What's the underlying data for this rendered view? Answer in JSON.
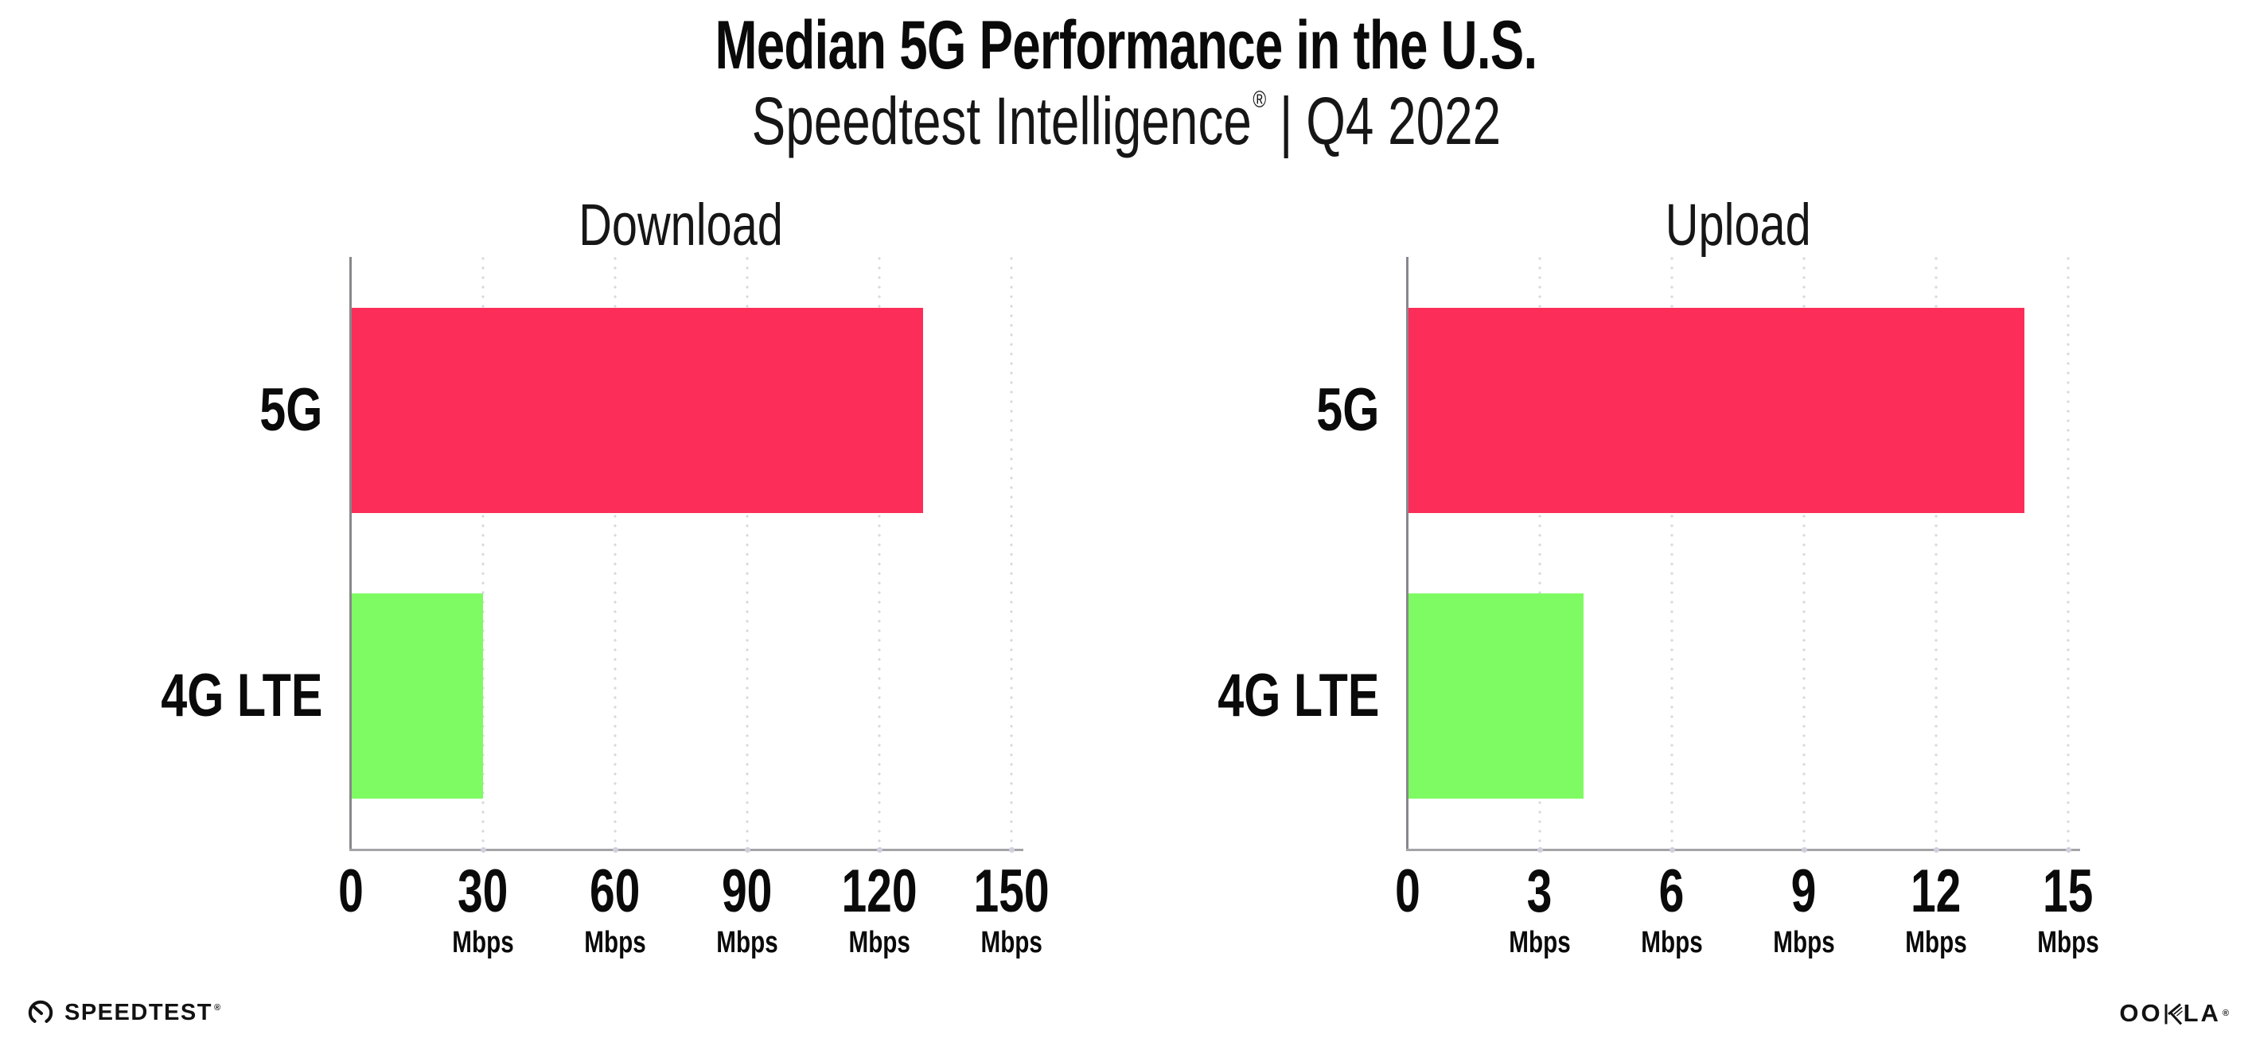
{
  "page": {
    "title": "Median 5G Performance in the U.S.",
    "subtitle": {
      "brand": "Speedtest Intelligence",
      "reg": "®",
      "separator": "|",
      "period": "Q4 2022"
    }
  },
  "chart_data": [
    {
      "type": "bar",
      "orientation": "horizontal",
      "title": "Download",
      "categories": [
        "5G",
        "4G LTE"
      ],
      "values": [
        130,
        30
      ],
      "unit": "Mbps",
      "xlim": [
        0,
        150
      ],
      "xticks": [
        0,
        30,
        60,
        90,
        120,
        150
      ],
      "grid": "vertical-dotted",
      "legend": "none",
      "bar_colors": [
        "#fc2e59",
        "#7efb63"
      ]
    },
    {
      "type": "bar",
      "orientation": "horizontal",
      "title": "Upload",
      "categories": [
        "5G",
        "4G LTE"
      ],
      "values": [
        14,
        4
      ],
      "unit": "Mbps",
      "xlim": [
        0,
        15
      ],
      "xticks": [
        0,
        3,
        6,
        9,
        12,
        15
      ],
      "grid": "vertical-dotted",
      "legend": "none",
      "bar_colors": [
        "#fc2e59",
        "#7efb63"
      ]
    }
  ],
  "footer": {
    "speedtest_wordmark": "SPEEDTEST",
    "speedtest_mark": "®",
    "ookla_wordmark_left": "OO",
    "ookla_wordmark_right": "LA",
    "ookla_mark": "®"
  },
  "colors": {
    "bar_5g": "#fc2e59",
    "bar_4g_lte": "#7efb63",
    "axis": "#87878c",
    "gridline_dots": "#d7d7e4",
    "text": "#0c0c0c"
  }
}
